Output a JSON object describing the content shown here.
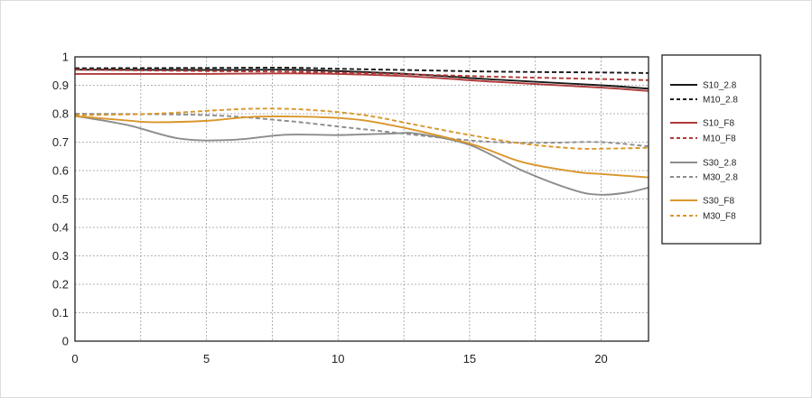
{
  "chart_data": {
    "type": "line",
    "title": "",
    "xlabel": "",
    "ylabel": "",
    "xlim": [
      0,
      21.8
    ],
    "ylim": [
      0,
      1
    ],
    "xticks": [
      "0",
      "5",
      "10",
      "15",
      "20"
    ],
    "yticks": [
      "0",
      "0.1",
      "0.2",
      "0.3",
      "0.4",
      "0.5",
      "0.6",
      "0.7",
      "0.8",
      "0.9",
      "1"
    ],
    "grid": true,
    "legend_position": "right",
    "series": [
      {
        "name": "S10_2.8",
        "color": "#1a1a1a",
        "dash": "solid",
        "points": [
          [
            0,
            0.955
          ],
          [
            5,
            0.954
          ],
          [
            8,
            0.955
          ],
          [
            10,
            0.95
          ],
          [
            13,
            0.938
          ],
          [
            16,
            0.92
          ],
          [
            20,
            0.9
          ],
          [
            21.8,
            0.888
          ]
        ]
      },
      {
        "name": "M10_2.8",
        "color": "#1a1a1a",
        "dash": "dashed",
        "points": [
          [
            0,
            0.96
          ],
          [
            5,
            0.961
          ],
          [
            8,
            0.962
          ],
          [
            10,
            0.958
          ],
          [
            13,
            0.953
          ],
          [
            16,
            0.948
          ],
          [
            20,
            0.945
          ],
          [
            21.8,
            0.943
          ]
        ]
      },
      {
        "name": "S10_F8",
        "color": "#b03a3a",
        "dash": "solid",
        "points": [
          [
            0,
            0.94
          ],
          [
            5,
            0.94
          ],
          [
            8,
            0.942
          ],
          [
            10,
            0.94
          ],
          [
            13,
            0.93
          ],
          [
            16,
            0.912
          ],
          [
            20,
            0.892
          ],
          [
            21.8,
            0.88
          ]
        ]
      },
      {
        "name": "M10_F8",
        "color": "#b03a3a",
        "dash": "dashed",
        "points": [
          [
            0,
            0.955
          ],
          [
            5,
            0.95
          ],
          [
            8,
            0.948
          ],
          [
            10,
            0.945
          ],
          [
            13,
            0.938
          ],
          [
            16,
            0.93
          ],
          [
            20,
            0.922
          ],
          [
            21.8,
            0.918
          ]
        ]
      },
      {
        "name": "S30_2.8",
        "color": "#8c8c8c",
        "dash": "solid",
        "points": [
          [
            0,
            0.792
          ],
          [
            2,
            0.76
          ],
          [
            4,
            0.712
          ],
          [
            6,
            0.708
          ],
          [
            8,
            0.726
          ],
          [
            10,
            0.725
          ],
          [
            12,
            0.73
          ],
          [
            13,
            0.73
          ],
          [
            15,
            0.69
          ],
          [
            17,
            0.6
          ],
          [
            19,
            0.53
          ],
          [
            20,
            0.515
          ],
          [
            21,
            0.523
          ],
          [
            21.8,
            0.54
          ]
        ]
      },
      {
        "name": "M30_2.8",
        "color": "#8c8c8c",
        "dash": "dashed",
        "points": [
          [
            0,
            0.8
          ],
          [
            5,
            0.795
          ],
          [
            8,
            0.775
          ],
          [
            10,
            0.755
          ],
          [
            12,
            0.735
          ],
          [
            14,
            0.715
          ],
          [
            16,
            0.7
          ],
          [
            18,
            0.698
          ],
          [
            20,
            0.7
          ],
          [
            21.8,
            0.685
          ]
        ]
      },
      {
        "name": "S30_F8",
        "color": "#d9962b",
        "dash": "solid",
        "points": [
          [
            0,
            0.792
          ],
          [
            2,
            0.776
          ],
          [
            3,
            0.77
          ],
          [
            5,
            0.775
          ],
          [
            7,
            0.79
          ],
          [
            10,
            0.785
          ],
          [
            12,
            0.76
          ],
          [
            15,
            0.695
          ],
          [
            17,
            0.63
          ],
          [
            19,
            0.596
          ],
          [
            20,
            0.588
          ],
          [
            21.8,
            0.576
          ]
        ]
      },
      {
        "name": "M30_F8",
        "color": "#d9962b",
        "dash": "dashed",
        "points": [
          [
            0,
            0.795
          ],
          [
            3,
            0.8
          ],
          [
            6,
            0.815
          ],
          [
            7.5,
            0.818
          ],
          [
            9,
            0.813
          ],
          [
            11,
            0.795
          ],
          [
            13,
            0.76
          ],
          [
            15,
            0.725
          ],
          [
            17,
            0.695
          ],
          [
            19,
            0.678
          ],
          [
            20,
            0.677
          ],
          [
            21.8,
            0.68
          ]
        ]
      }
    ]
  }
}
